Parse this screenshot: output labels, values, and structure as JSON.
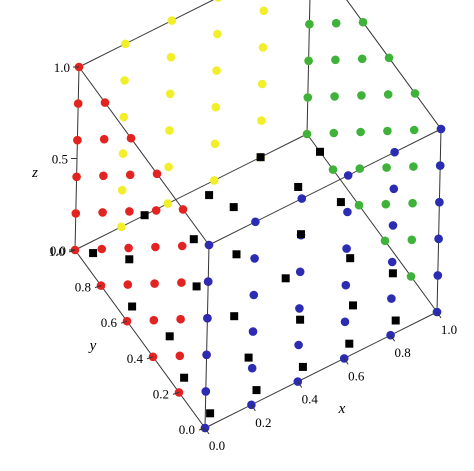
{
  "chart_data": {
    "type": "scatter3d",
    "title": "",
    "axes": {
      "x": {
        "label": "x",
        "range": [
          0,
          1
        ],
        "ticks": [
          "0.0",
          "0.2",
          "0.4",
          "0.6",
          "0.8",
          "1.0"
        ]
      },
      "y": {
        "label": "y",
        "range": [
          0,
          1
        ],
        "ticks": [
          "0.0",
          "0.2",
          "0.4",
          "0.6",
          "0.8",
          "1.0"
        ]
      },
      "z": {
        "label": "z",
        "range": [
          0,
          1
        ],
        "ticks": [
          "0.0",
          "0.5",
          "1.0"
        ]
      }
    },
    "face_grid": [
      0,
      0.2,
      0.4,
      0.6,
      0.8,
      1.0
    ],
    "series": [
      {
        "color": "#e32222",
        "face": "x=0",
        "description": "points on face x = 0"
      },
      {
        "color": "#2b2bb3",
        "face": "y=0",
        "description": "points on face y = 0"
      },
      {
        "color": "#3fb23a",
        "face": "x=1",
        "description": "points on face x = 1"
      },
      {
        "color": "#f2ee2a",
        "face": "y=1",
        "description": "points on face y = 1"
      },
      {
        "color": "#000000",
        "marker": "square",
        "description": "interior points on base z = 0"
      }
    ],
    "base_points": [
      [
        0.05,
        0.05
      ],
      [
        0.25,
        0.05
      ],
      [
        0.45,
        0.05
      ],
      [
        0.65,
        0.05
      ],
      [
        0.85,
        0.05
      ],
      [
        0.05,
        0.25
      ],
      [
        0.3,
        0.2
      ],
      [
        0.55,
        0.25
      ],
      [
        0.75,
        0.2
      ],
      [
        0.95,
        0.25
      ],
      [
        0.1,
        0.45
      ],
      [
        0.35,
        0.4
      ],
      [
        0.6,
        0.45
      ],
      [
        0.85,
        0.4
      ],
      [
        0.05,
        0.65
      ],
      [
        0.3,
        0.6
      ],
      [
        0.5,
        0.65
      ],
      [
        0.75,
        0.6
      ],
      [
        0.95,
        0.65
      ],
      [
        0.15,
        0.85
      ],
      [
        0.4,
        0.8
      ],
      [
        0.6,
        0.85
      ],
      [
        0.85,
        0.8
      ],
      [
        0.05,
        0.95
      ],
      [
        0.3,
        1.0
      ],
      [
        0.55,
        0.95
      ],
      [
        0.8,
        1.0
      ],
      [
        1.0,
        0.9
      ]
    ]
  }
}
